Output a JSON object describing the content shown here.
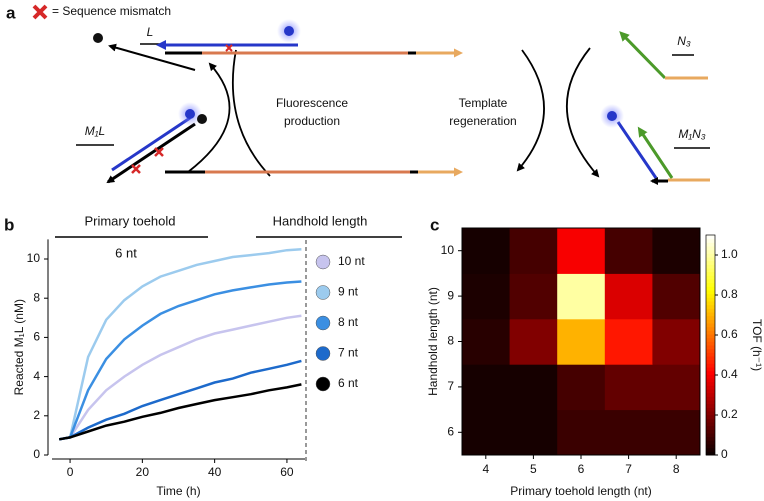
{
  "panel_a": {
    "label": "a",
    "mismatch_legend": "= Sequence mismatch",
    "L": "L",
    "M1L": "M₁L",
    "production": [
      "Fluorescence",
      "production"
    ],
    "regeneration": [
      "Template",
      "regeneration"
    ],
    "N3": "N₃",
    "M1N3": "M₁N₃"
  },
  "chart_data": [
    {
      "type": "line",
      "panel_label": "b",
      "x_label": "Time (h)",
      "y_label": "Reacted M₁L (nM)",
      "annotations": [
        "Primary toehold",
        "6 nt",
        "Handhold length"
      ],
      "x": [
        -3,
        0,
        5,
        10,
        15,
        20,
        25,
        30,
        35,
        40,
        45,
        50,
        55,
        60,
        64
      ],
      "series": [
        {
          "name": "10 nt",
          "color": "#c7c4ee",
          "values": [
            0.8,
            0.9,
            2.3,
            3.3,
            4.0,
            4.6,
            5.1,
            5.5,
            5.9,
            6.2,
            6.4,
            6.6,
            6.8,
            7.0,
            7.1
          ]
        },
        {
          "name": "9 nt",
          "color": "#9ccbee",
          "values": [
            0.8,
            0.9,
            5.0,
            6.9,
            7.9,
            8.6,
            9.1,
            9.4,
            9.7,
            9.9,
            10.1,
            10.2,
            10.3,
            10.45,
            10.5
          ]
        },
        {
          "name": "8 nt",
          "color": "#3b8fe2",
          "values": [
            0.8,
            0.9,
            3.3,
            4.9,
            5.9,
            6.6,
            7.2,
            7.6,
            7.9,
            8.2,
            8.4,
            8.55,
            8.7,
            8.8,
            8.85
          ]
        },
        {
          "name": "7 nt",
          "color": "#1d6acb",
          "values": [
            0.8,
            0.9,
            1.4,
            1.8,
            2.1,
            2.5,
            2.8,
            3.1,
            3.4,
            3.7,
            3.9,
            4.2,
            4.4,
            4.6,
            4.8
          ]
        },
        {
          "name": "6 nt",
          "color": "#000000",
          "values": [
            0.8,
            0.9,
            1.2,
            1.5,
            1.7,
            1.95,
            2.15,
            2.4,
            2.6,
            2.8,
            2.95,
            3.1,
            3.3,
            3.45,
            3.6
          ]
        }
      ],
      "xlim": [
        -5,
        65
      ],
      "xticks": [
        0,
        20,
        40,
        60
      ],
      "ylim": [
        0,
        11
      ],
      "yticks": [
        0,
        2,
        4,
        6,
        8,
        10
      ]
    },
    {
      "type": "heatmap",
      "panel_label": "c",
      "x_label": "Primary toehold length (nt)",
      "y_label": "Handhold length (nt)",
      "x_categories": [
        4,
        5,
        6,
        7,
        8
      ],
      "y_categories": [
        6,
        7,
        8,
        9,
        10
      ],
      "z": [
        [
          0.02,
          0.02,
          0.08,
          0.08,
          0.08
        ],
        [
          0.02,
          0.02,
          0.1,
          0.15,
          0.15
        ],
        [
          0.05,
          0.2,
          0.7,
          0.45,
          0.2
        ],
        [
          0.03,
          0.12,
          1.0,
          0.35,
          0.12
        ],
        [
          0.02,
          0.1,
          0.4,
          0.1,
          0.03
        ]
      ],
      "colormap": "hot",
      "colorbar": {
        "label": "TOF (h⁻¹)",
        "clim": [
          0,
          1.1
        ],
        "ticks": [
          0,
          0.2,
          0.4,
          0.6,
          0.8,
          {
            "value": 1,
            "label": "1.0"
          }
        ]
      }
    }
  ]
}
